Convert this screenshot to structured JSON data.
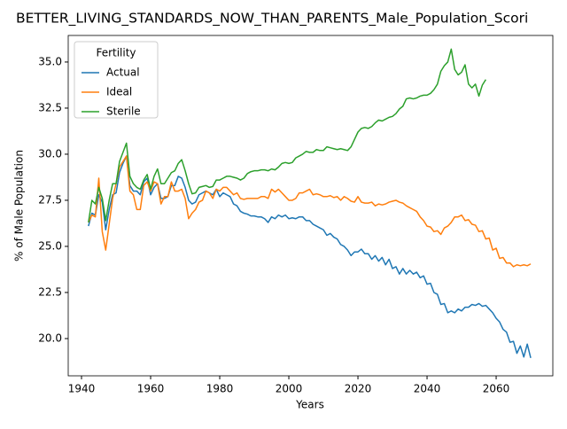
{
  "chart_data": {
    "type": "line",
    "title": "BETTER_LIVING_STANDARDS_NOW_THAN_PARENTS_Male_Population_Scori",
    "xlabel": "Years",
    "ylabel": "% of Male Population",
    "legend_title": "Fertility",
    "legend": "upper left",
    "x": [
      1942,
      1943,
      1944,
      1945,
      1946,
      1947,
      1948,
      1949,
      1950,
      1951,
      1952,
      1953,
      1954,
      1955,
      1956,
      1957,
      1958,
      1959,
      1960,
      1961,
      1962,
      1963,
      1964,
      1965,
      1966,
      1967,
      1968,
      1969,
      1970,
      1971,
      1972,
      1973,
      1974,
      1975,
      1976,
      1977,
      1978,
      1979,
      1980,
      1981,
      1982,
      1983,
      1984,
      1985,
      1986,
      1987,
      1988,
      1989,
      1990,
      1991,
      1992,
      1993,
      1994,
      1995,
      1996,
      1997,
      1998,
      1999,
      2000,
      2001,
      2002,
      2003,
      2004,
      2005,
      2006,
      2007,
      2008,
      2009,
      2010,
      2011,
      2012,
      2013,
      2014,
      2015,
      2016,
      2017,
      2018,
      2019,
      2020,
      2021,
      2022,
      2023,
      2024,
      2025,
      2026,
      2027,
      2028,
      2029,
      2030,
      2031,
      2032,
      2033,
      2034,
      2035,
      2036,
      2037,
      2038,
      2039,
      2040,
      2041,
      2042,
      2043,
      2044,
      2045,
      2046,
      2047,
      2048,
      2049,
      2050,
      2051,
      2052,
      2053,
      2054,
      2055,
      2056,
      2057,
      2058,
      2059,
      2060,
      2061,
      2062,
      2063,
      2064,
      2065,
      2066,
      2067,
      2068,
      2069,
      2070
    ],
    "series": [
      {
        "name": "Actual",
        "color": "#1f77b4",
        "values": [
          26.1,
          26.8,
          26.7,
          27.8,
          27.4,
          25.9,
          27.0,
          27.8,
          27.9,
          29.0,
          29.5,
          29.9,
          28.3,
          28.0,
          28.0,
          27.8,
          28.5,
          28.7,
          27.8,
          28.2,
          28.4,
          27.6,
          27.6,
          27.7,
          28.3,
          28.3,
          28.8,
          28.7,
          28.2,
          27.5,
          27.3,
          27.4,
          27.8,
          27.9,
          28.0,
          27.9,
          27.8,
          28.1,
          27.7,
          27.9,
          27.8,
          27.7,
          27.3,
          27.2,
          26.9,
          26.8,
          26.75,
          26.65,
          26.65,
          26.6,
          26.6,
          26.5,
          26.3,
          26.6,
          26.5,
          26.7,
          26.6,
          26.7,
          26.5,
          26.55,
          26.5,
          26.6,
          26.6,
          26.4,
          26.4,
          26.2,
          26.1,
          26.0,
          25.9,
          25.6,
          25.7,
          25.5,
          25.4,
          25.1,
          25.0,
          24.8,
          24.5,
          24.7,
          24.7,
          24.85,
          24.6,
          24.6,
          24.3,
          24.5,
          24.2,
          24.4,
          24.0,
          24.3,
          23.8,
          23.9,
          23.5,
          23.8,
          23.5,
          23.7,
          23.5,
          23.6,
          23.3,
          23.4,
          22.95,
          23.0,
          22.5,
          22.4,
          21.85,
          21.9,
          21.4,
          21.5,
          21.4,
          21.6,
          21.5,
          21.7,
          21.7,
          21.85,
          21.8,
          21.9,
          21.75,
          21.8,
          21.6,
          21.4,
          21.1,
          20.9,
          20.5,
          20.35,
          19.8,
          19.85,
          19.2,
          19.6,
          19.0,
          19.7,
          18.95
        ]
      },
      {
        "name": "Ideal",
        "color": "#ff7f0e",
        "values": [
          26.3,
          26.7,
          26.6,
          28.7,
          25.8,
          24.8,
          26.2,
          27.6,
          28.4,
          29.3,
          29.6,
          29.9,
          28.0,
          27.8,
          27.0,
          27.0,
          28.3,
          28.5,
          28.0,
          28.5,
          28.4,
          27.3,
          27.7,
          27.7,
          28.5,
          28.0,
          28.0,
          28.1,
          27.6,
          26.5,
          26.8,
          27.0,
          27.4,
          27.5,
          28.0,
          27.9,
          27.6,
          28.1,
          28.0,
          28.2,
          28.2,
          28.0,
          27.8,
          27.9,
          27.6,
          27.55,
          27.6,
          27.6,
          27.6,
          27.6,
          27.7,
          27.7,
          27.6,
          28.1,
          27.95,
          28.1,
          27.9,
          27.7,
          27.5,
          27.5,
          27.6,
          27.9,
          27.9,
          28.0,
          28.1,
          27.8,
          27.85,
          27.8,
          27.7,
          27.7,
          27.75,
          27.65,
          27.7,
          27.5,
          27.7,
          27.6,
          27.45,
          27.4,
          27.7,
          27.4,
          27.35,
          27.35,
          27.4,
          27.2,
          27.3,
          27.25,
          27.3,
          27.4,
          27.45,
          27.5,
          27.4,
          27.35,
          27.2,
          27.1,
          27.0,
          26.9,
          26.6,
          26.4,
          26.1,
          26.05,
          25.8,
          25.85,
          25.65,
          26.0,
          26.1,
          26.3,
          26.6,
          26.6,
          26.7,
          26.4,
          26.45,
          26.2,
          26.15,
          25.8,
          25.85,
          25.4,
          25.45,
          24.8,
          24.9,
          24.35,
          24.4,
          24.1,
          24.1,
          23.9,
          24.0,
          23.95,
          24.0,
          23.95,
          24.05
        ]
      },
      {
        "name": "Sterile",
        "color": "#2ca02c",
        "values": [
          26.3,
          27.5,
          27.3,
          28.2,
          27.6,
          26.4,
          27.5,
          28.4,
          28.4,
          29.6,
          30.1,
          30.6,
          28.8,
          28.4,
          28.2,
          28.1,
          28.6,
          28.9,
          28.1,
          28.8,
          29.2,
          28.4,
          28.4,
          28.7,
          29.0,
          29.1,
          29.5,
          29.7,
          29.1,
          28.4,
          27.85,
          27.9,
          28.2,
          28.25,
          28.3,
          28.2,
          28.25,
          28.6,
          28.6,
          28.7,
          28.8,
          28.8,
          28.75,
          28.7,
          28.6,
          28.7,
          28.95,
          29.05,
          29.1,
          29.1,
          29.15,
          29.15,
          29.1,
          29.2,
          29.15,
          29.3,
          29.5,
          29.55,
          29.5,
          29.55,
          29.8,
          29.9,
          30.0,
          30.15,
          30.1,
          30.1,
          30.25,
          30.2,
          30.2,
          30.4,
          30.35,
          30.3,
          30.25,
          30.3,
          30.25,
          30.2,
          30.4,
          30.8,
          31.2,
          31.4,
          31.45,
          31.4,
          31.5,
          31.7,
          31.85,
          31.8,
          31.9,
          32.0,
          32.05,
          32.2,
          32.45,
          32.6,
          33.0,
          33.05,
          33.0,
          33.05,
          33.15,
          33.2,
          33.2,
          33.3,
          33.5,
          33.8,
          34.5,
          34.8,
          35.0,
          35.7,
          34.6,
          34.3,
          34.45,
          34.85,
          33.8,
          33.6,
          33.8,
          33.15,
          33.75,
          34.05,
          null,
          null,
          null,
          null,
          null,
          null,
          null,
          null,
          null,
          null,
          null,
          null,
          null
        ]
      }
    ],
    "xlim": [
      1936.15,
      2076.4
    ],
    "xticks": [
      1940,
      1960,
      1980,
      2000,
      2020,
      2040,
      2060
    ],
    "ylim": [
      17.98,
      36.44
    ],
    "yticks": [
      {
        "value": 20,
        "label": "20.0"
      },
      22.5,
      {
        "value": 25,
        "label": "25.0"
      },
      27.5,
      {
        "value": 30,
        "label": "30.0"
      },
      32.5,
      {
        "value": 35,
        "label": "35.0"
      }
    ],
    "grid": false
  }
}
